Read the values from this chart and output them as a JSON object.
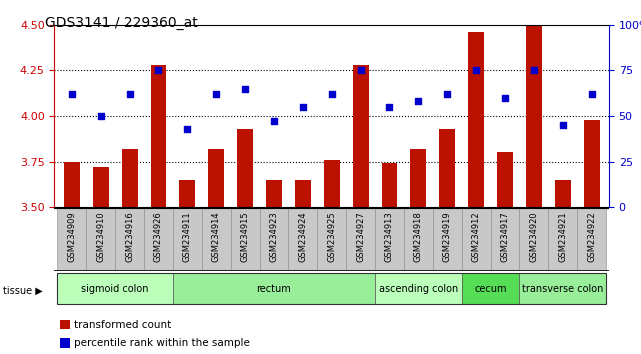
{
  "title": "GDS3141 / 229360_at",
  "samples": [
    "GSM234909",
    "GSM234910",
    "GSM234916",
    "GSM234926",
    "GSM234911",
    "GSM234914",
    "GSM234915",
    "GSM234923",
    "GSM234924",
    "GSM234925",
    "GSM234927",
    "GSM234913",
    "GSM234918",
    "GSM234919",
    "GSM234912",
    "GSM234917",
    "GSM234920",
    "GSM234921",
    "GSM234922"
  ],
  "bar_values": [
    3.75,
    3.72,
    3.82,
    4.28,
    3.65,
    3.82,
    3.93,
    3.65,
    3.65,
    3.76,
    4.28,
    3.74,
    3.82,
    3.93,
    4.46,
    3.8,
    4.5,
    3.65,
    3.98
  ],
  "dot_values": [
    62,
    50,
    62,
    75,
    43,
    62,
    65,
    47,
    55,
    62,
    75,
    55,
    58,
    62,
    75,
    60,
    75,
    45,
    62
  ],
  "ylim_left": [
    3.5,
    4.5
  ],
  "ylim_right": [
    0,
    100
  ],
  "yticks_left": [
    3.5,
    3.75,
    4.0,
    4.25,
    4.5
  ],
  "yticks_right": [
    0,
    25,
    50,
    75,
    100
  ],
  "hlines": [
    3.75,
    4.0,
    4.25
  ],
  "bar_color": "#bb1100",
  "dot_color": "#0000cc",
  "bg_xticklabel": "#c8c8c8",
  "tissue_groups": [
    {
      "label": "sigmoid colon",
      "start": 0,
      "end": 3,
      "color": "#bbffbb"
    },
    {
      "label": "rectum",
      "start": 4,
      "end": 10,
      "color": "#99ee99"
    },
    {
      "label": "ascending colon",
      "start": 11,
      "end": 13,
      "color": "#bbffbb"
    },
    {
      "label": "cecum",
      "start": 14,
      "end": 15,
      "color": "#55dd55"
    },
    {
      "label": "transverse colon",
      "start": 16,
      "end": 18,
      "color": "#99ee99"
    }
  ],
  "legend_labels": [
    "transformed count",
    "percentile rank within the sample"
  ],
  "legend_colors": [
    "#bb1100",
    "#0000cc"
  ],
  "ylabel_left_color": "#cc0000",
  "ylabel_right_color": "#0000cc",
  "title_fontsize": 10,
  "tick_fontsize": 6,
  "tissue_fontsize": 7
}
